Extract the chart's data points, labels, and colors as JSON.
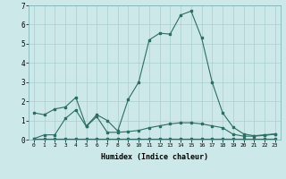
{
  "xlabel": "Humidex (Indice chaleur)",
  "x": [
    0,
    1,
    2,
    3,
    4,
    5,
    6,
    7,
    8,
    9,
    10,
    11,
    12,
    13,
    14,
    15,
    16,
    17,
    18,
    19,
    20,
    21,
    22,
    23
  ],
  "line1": [
    1.4,
    1.3,
    1.6,
    1.7,
    2.2,
    0.7,
    1.3,
    1.0,
    0.45,
    2.1,
    3.0,
    5.2,
    5.55,
    5.5,
    6.5,
    6.7,
    5.3,
    3.0,
    1.4,
    0.65,
    0.3,
    0.2,
    0.25,
    0.3
  ],
  "line2": [
    0.05,
    0.25,
    0.25,
    1.1,
    1.55,
    0.68,
    1.2,
    0.38,
    0.38,
    0.42,
    0.48,
    0.62,
    0.72,
    0.82,
    0.88,
    0.88,
    0.82,
    0.72,
    0.62,
    0.28,
    0.18,
    0.18,
    0.22,
    0.28
  ],
  "line3": [
    0.05,
    0.05,
    0.05,
    0.05,
    0.05,
    0.05,
    0.05,
    0.05,
    0.05,
    0.05,
    0.05,
    0.05,
    0.05,
    0.05,
    0.05,
    0.05,
    0.05,
    0.05,
    0.05,
    0.05,
    0.05,
    0.05,
    0.05,
    0.05
  ],
  "line_color": "#2d6e63",
  "bg_color": "#cce8e8",
  "grid_color": "#aacfcf",
  "ylim": [
    0,
    7
  ],
  "xlim": [
    -0.5,
    23.5
  ],
  "yticks": [
    0,
    1,
    2,
    3,
    4,
    5,
    6,
    7
  ],
  "xticks": [
    0,
    1,
    2,
    3,
    4,
    5,
    6,
    7,
    8,
    9,
    10,
    11,
    12,
    13,
    14,
    15,
    16,
    17,
    18,
    19,
    20,
    21,
    22,
    23
  ]
}
